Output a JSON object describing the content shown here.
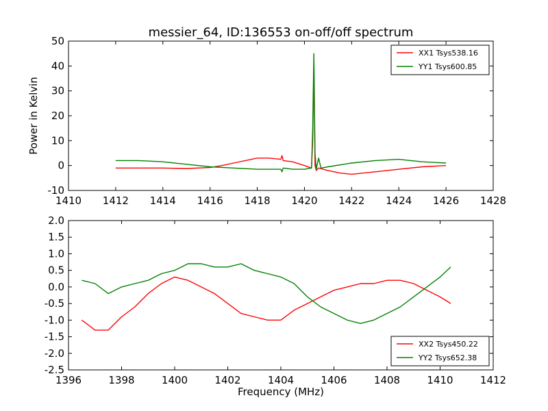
{
  "figure": {
    "title": "messier_64, ID:136553 on-off/off spectrum"
  },
  "chart_data": [
    {
      "type": "line",
      "title": "messier_64, ID:136553 on-off/off spectrum",
      "xlabel": "",
      "ylabel": "Power in Kelvin",
      "xlim": [
        1410,
        1428
      ],
      "ylim": [
        -10,
        50
      ],
      "xticks": [
        1410,
        1412,
        1414,
        1416,
        1418,
        1420,
        1422,
        1424,
        1426,
        1428
      ],
      "yticks": [
        -10,
        0,
        10,
        20,
        30,
        40,
        50
      ],
      "legend_position": "top-right",
      "grid": false,
      "series": [
        {
          "name": "XX1 Tsys538.16",
          "color": "#ff0000",
          "x": [
            1412.0,
            1413.0,
            1414.0,
            1415.0,
            1416.0,
            1416.5,
            1417.0,
            1417.5,
            1418.0,
            1418.5,
            1419.0,
            1419.05,
            1419.1,
            1419.5,
            1420.0,
            1420.3,
            1420.35,
            1420.4,
            1420.45,
            1420.5,
            1420.6,
            1421.0,
            1421.5,
            1422.0,
            1422.5,
            1423.0,
            1424.0,
            1425.0,
            1426.0
          ],
          "y": [
            -1.0,
            -1.0,
            -1.0,
            -1.2,
            -0.8,
            0.0,
            1.0,
            2.0,
            3.0,
            3.0,
            2.5,
            4.0,
            2.0,
            1.5,
            0.0,
            -1.0,
            10.0,
            40.0,
            0.0,
            -2.0,
            -1.0,
            -2.0,
            -3.0,
            -3.5,
            -3.0,
            -2.5,
            -1.5,
            -0.5,
            0.0
          ]
        },
        {
          "name": "YY1 Tsys600.85",
          "color": "#008000",
          "x": [
            1412.0,
            1413.0,
            1414.0,
            1415.0,
            1416.0,
            1417.0,
            1418.0,
            1419.0,
            1419.05,
            1419.1,
            1419.5,
            1420.0,
            1420.3,
            1420.35,
            1420.4,
            1420.45,
            1420.5,
            1420.6,
            1420.7,
            1421.0,
            1422.0,
            1423.0,
            1424.0,
            1424.5,
            1425.0,
            1426.0
          ],
          "y": [
            2.0,
            2.0,
            1.5,
            0.5,
            -0.5,
            -1.0,
            -1.5,
            -1.5,
            -2.5,
            -1.0,
            -1.5,
            -1.5,
            -1.0,
            15.0,
            45.0,
            5.0,
            -1.5,
            3.0,
            -1.0,
            -0.5,
            1.0,
            2.0,
            2.5,
            2.0,
            1.5,
            1.0
          ]
        }
      ]
    },
    {
      "type": "line",
      "title": "",
      "xlabel": "Frequency (MHz)",
      "ylabel": "",
      "xlim": [
        1396,
        1412
      ],
      "ylim": [
        -2.5,
        2.0
      ],
      "xticks": [
        1396,
        1398,
        1400,
        1402,
        1404,
        1406,
        1408,
        1410,
        1412
      ],
      "yticks": [
        -2.5,
        -2.0,
        -1.5,
        -1.0,
        -0.5,
        0.0,
        0.5,
        1.0,
        1.5,
        2.0
      ],
      "legend_position": "bottom-right",
      "grid": false,
      "series": [
        {
          "name": "XX2 Tsys450.22",
          "color": "#ff0000",
          "x": [
            1396.5,
            1397.0,
            1397.5,
            1398.0,
            1398.5,
            1399.0,
            1399.5,
            1400.0,
            1400.5,
            1401.0,
            1401.5,
            1402.0,
            1402.5,
            1403.0,
            1403.5,
            1404.0,
            1404.5,
            1405.0,
            1405.5,
            1406.0,
            1406.5,
            1407.0,
            1407.5,
            1408.0,
            1408.5,
            1409.0,
            1409.5,
            1410.0,
            1410.4
          ],
          "y": [
            -1.0,
            -1.3,
            -1.3,
            -0.9,
            -0.6,
            -0.2,
            0.1,
            0.3,
            0.2,
            0.0,
            -0.2,
            -0.5,
            -0.8,
            -0.9,
            -1.0,
            -1.0,
            -0.7,
            -0.5,
            -0.3,
            -0.1,
            0.0,
            0.1,
            0.1,
            0.2,
            0.2,
            0.1,
            -0.1,
            -0.3,
            -0.5
          ]
        },
        {
          "name": "YY2 Tsys652.38",
          "color": "#008000",
          "x": [
            1396.5,
            1397.0,
            1397.5,
            1398.0,
            1398.5,
            1399.0,
            1399.5,
            1400.0,
            1400.5,
            1401.0,
            1401.5,
            1402.0,
            1402.5,
            1403.0,
            1403.5,
            1404.0,
            1404.5,
            1405.0,
            1405.5,
            1406.0,
            1406.5,
            1407.0,
            1407.5,
            1408.0,
            1408.5,
            1409.0,
            1409.5,
            1410.0,
            1410.4
          ],
          "y": [
            0.2,
            0.1,
            -0.2,
            0.0,
            0.1,
            0.2,
            0.4,
            0.5,
            0.7,
            0.7,
            0.6,
            0.6,
            0.7,
            0.5,
            0.4,
            0.3,
            0.1,
            -0.3,
            -0.6,
            -0.8,
            -1.0,
            -1.1,
            -1.0,
            -0.8,
            -0.6,
            -0.3,
            0.0,
            0.3,
            0.6
          ]
        }
      ]
    }
  ]
}
